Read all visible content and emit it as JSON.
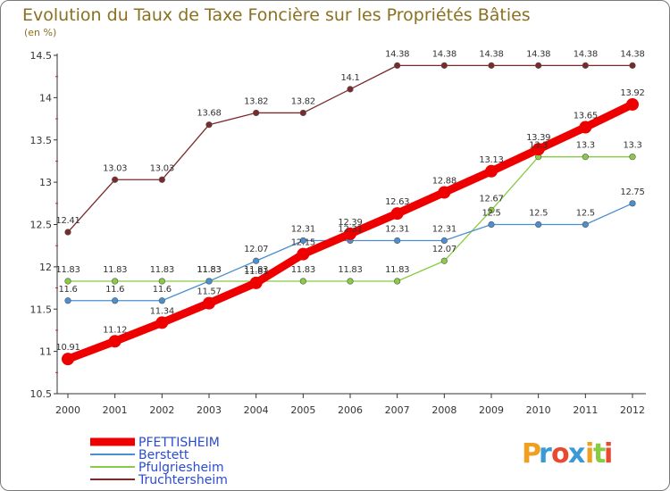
{
  "chart_data": {
    "type": "line",
    "title": "Evolution du Taux de Taxe Foncière sur les Propriétés Bâties",
    "subtitle": "(en %)",
    "xlabel": "",
    "ylabel": "",
    "ylim": [
      10.5,
      14.5
    ],
    "yticks": [
      "10.5",
      "11",
      "11.5",
      "12",
      "12.5",
      "13",
      "13.5",
      "14",
      "14.5"
    ],
    "categories": [
      "2000",
      "2001",
      "2002",
      "2003",
      "2004",
      "2005",
      "2006",
      "2007",
      "2008",
      "2009",
      "2010",
      "2011",
      "2012"
    ],
    "grid": false,
    "legend_position": "bottom-left",
    "series": [
      {
        "name": "PFETTISHEIM",
        "color": "#ee0000",
        "labels": [
          "10.91",
          "11.12",
          "11.34",
          "11.57",
          "11.81",
          "12.15",
          "12.39",
          "12.63",
          "12.88",
          "13.13",
          "13.39",
          "13.65",
          "13.92"
        ],
        "values": [
          10.91,
          11.12,
          11.34,
          11.57,
          11.81,
          12.15,
          12.39,
          12.63,
          12.88,
          13.13,
          13.39,
          13.65,
          13.92
        ]
      },
      {
        "name": "Berstett",
        "color": "#4a8fd0",
        "labels": [
          "11.6",
          "11.6",
          "11.6",
          "11.83",
          "12.07",
          "12.31",
          "12.31",
          "12.31",
          "12.31",
          "12.5",
          "12.5",
          "12.5",
          "12.75"
        ],
        "values": [
          11.6,
          11.6,
          11.6,
          11.83,
          12.07,
          12.31,
          12.31,
          12.31,
          12.31,
          12.5,
          12.5,
          12.5,
          12.75
        ]
      },
      {
        "name": "Pfulgriesheim",
        "color": "#88cc44",
        "labels": [
          "11.83",
          "11.83",
          "11.83",
          "11.83",
          "11.83",
          "11.83",
          "11.83",
          "11.83",
          "12.07",
          "12.67",
          "13.3",
          "13.3",
          "13.3"
        ],
        "values": [
          11.83,
          11.83,
          11.83,
          11.83,
          11.83,
          11.83,
          11.83,
          11.83,
          12.07,
          12.67,
          13.3,
          13.3,
          13.3
        ]
      },
      {
        "name": "Truchtersheim",
        "color": "#7a2a2a",
        "labels": [
          "12.41",
          "13.03",
          "13.03",
          "13.68",
          "13.82",
          "13.82",
          "14.1",
          "14.38",
          "14.38",
          "14.38",
          "14.38",
          "14.38",
          "14.38"
        ],
        "values": [
          12.41,
          13.03,
          13.03,
          13.68,
          13.82,
          13.82,
          14.1,
          14.38,
          14.38,
          14.38,
          14.38,
          14.38,
          14.38
        ]
      }
    ]
  },
  "brand": {
    "letters": [
      "P",
      "r",
      "o",
      "x",
      "i",
      "t",
      "i"
    ],
    "colors": [
      "#f0a020",
      "#3a9ad8",
      "#e84a30",
      "#3a9ad8",
      "#f0a020",
      "#88cc44",
      "#e84a30"
    ]
  }
}
